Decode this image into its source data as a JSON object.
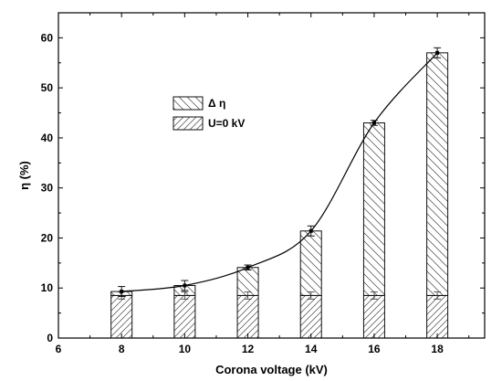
{
  "chart_data": {
    "type": "bar",
    "stacked": true,
    "xlabel": "Corona voltage (kV)",
    "ylabel": "η (%)",
    "xlim": [
      6,
      19.5
    ],
    "ylim": [
      0,
      65
    ],
    "x_ticks": [
      6,
      8,
      10,
      12,
      14,
      16,
      18
    ],
    "y_ticks": [
      0,
      10,
      20,
      30,
      40,
      50,
      60
    ],
    "x": [
      8,
      10,
      12,
      14,
      16,
      18
    ],
    "series": [
      {
        "name": "U=0 kV",
        "values": [
          8.5,
          8.5,
          8.5,
          8.5,
          8.5,
          8.5
        ],
        "hatch": "forward-diagonal"
      },
      {
        "name": "Δ η",
        "values": [
          0.8,
          2.0,
          5.6,
          12.9,
          34.5,
          48.5
        ],
        "hatch": "back-diagonal"
      }
    ],
    "totals": [
      9.3,
      10.5,
      14.1,
      21.4,
      43.0,
      57.0
    ],
    "total_errors": [
      1.0,
      1.0,
      0.5,
      1.0,
      0.5,
      1.0
    ],
    "base_errors": [
      0.7,
      0.7,
      0.7,
      0.7,
      0.7,
      0.7
    ],
    "trend_line": true,
    "legend_position": "upper-left-center",
    "grid": false
  }
}
